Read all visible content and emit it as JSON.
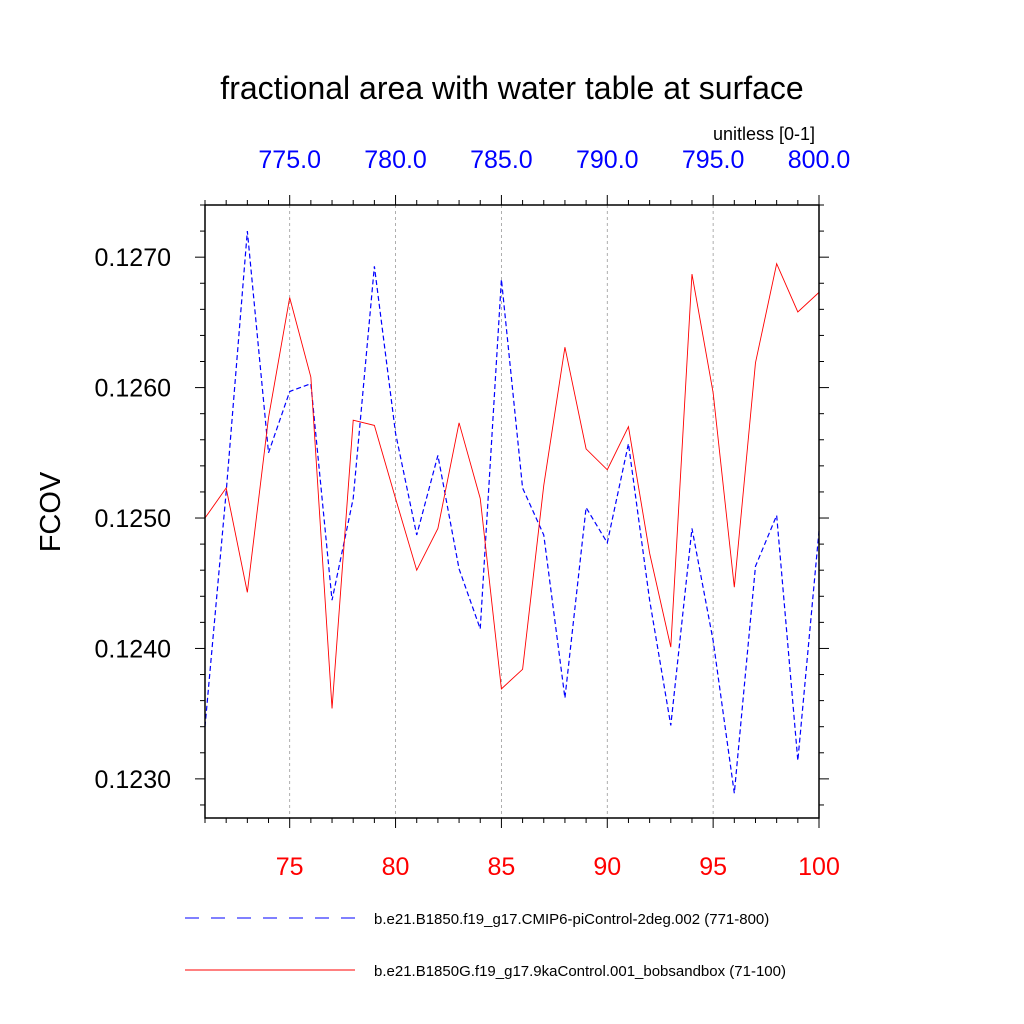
{
  "chart_data": {
    "type": "line",
    "title": "fractional area with water table at surface",
    "units_label": "unitless [0-1]",
    "ylabel": "FCOV",
    "ylim": [
      0.1227,
      0.1274
    ],
    "y_ticks": [
      0.123,
      0.124,
      0.125,
      0.126,
      0.127
    ],
    "y_tick_labels": [
      "0.1230",
      "0.1240",
      "0.1250",
      "0.1260",
      "0.1270"
    ],
    "y_minor_step": 0.0002,
    "bottom_axis": {
      "color": "#ff0000",
      "xlim": [
        71,
        100
      ],
      "ticks": [
        75,
        80,
        85,
        90,
        95,
        100
      ],
      "tick_labels": [
        "75",
        "80",
        "85",
        "90",
        "95",
        "100"
      ]
    },
    "top_axis": {
      "color": "#0000ff",
      "xlim": [
        771,
        800
      ],
      "ticks": [
        775,
        780,
        785,
        790,
        795,
        800
      ],
      "tick_labels": [
        "775.0",
        "780.0",
        "785.0",
        "790.0",
        "795.0",
        "800.0"
      ]
    },
    "vertical_gridlines_at": [
      75,
      80,
      85,
      90,
      95
    ],
    "x_minor_step": 1,
    "series": [
      {
        "name": "b.e21.B1850.f19_g17.CMIP6-piControl-2deg.002 (771-800)",
        "color": "#0000ff",
        "dash": "dashed",
        "x": [
          771,
          772,
          773,
          774,
          775,
          776,
          777,
          778,
          779,
          780,
          781,
          782,
          783,
          784,
          785,
          786,
          787,
          788,
          789,
          790,
          791,
          792,
          793,
          794,
          795,
          796,
          797,
          798,
          799,
          800
        ],
        "values": [
          0.1234,
          0.1252,
          0.1272,
          0.1255,
          0.12597,
          0.12603,
          0.12437,
          0.12515,
          0.12693,
          0.12565,
          0.12487,
          0.12548,
          0.12461,
          0.12415,
          0.12683,
          0.12523,
          0.12487,
          0.12362,
          0.12508,
          0.12481,
          0.12557,
          0.12437,
          0.12341,
          0.12492,
          0.12406,
          0.12289,
          0.12463,
          0.12502,
          0.12314,
          0.1249
        ]
      },
      {
        "name": "b.e21.B1850G.f19_g17.9kaControl.001_bobsandbox (71-100)",
        "color": "#ff0000",
        "dash": "solid",
        "x": [
          71,
          72,
          73,
          74,
          75,
          76,
          77,
          78,
          79,
          80,
          81,
          82,
          83,
          84,
          85,
          86,
          87,
          88,
          89,
          90,
          91,
          92,
          93,
          94,
          95,
          96,
          97,
          98,
          99,
          100
        ],
        "values": [
          0.125,
          0.12523,
          0.12443,
          0.12577,
          0.12669,
          0.12608,
          0.12354,
          0.12575,
          0.12571,
          0.12515,
          0.1246,
          0.12492,
          0.12573,
          0.12515,
          0.12369,
          0.12384,
          0.12525,
          0.12631,
          0.12553,
          0.12537,
          0.1257,
          0.12473,
          0.12401,
          0.12687,
          0.12596,
          0.12447,
          0.12619,
          0.12695,
          0.12658,
          0.12673
        ]
      }
    ]
  }
}
